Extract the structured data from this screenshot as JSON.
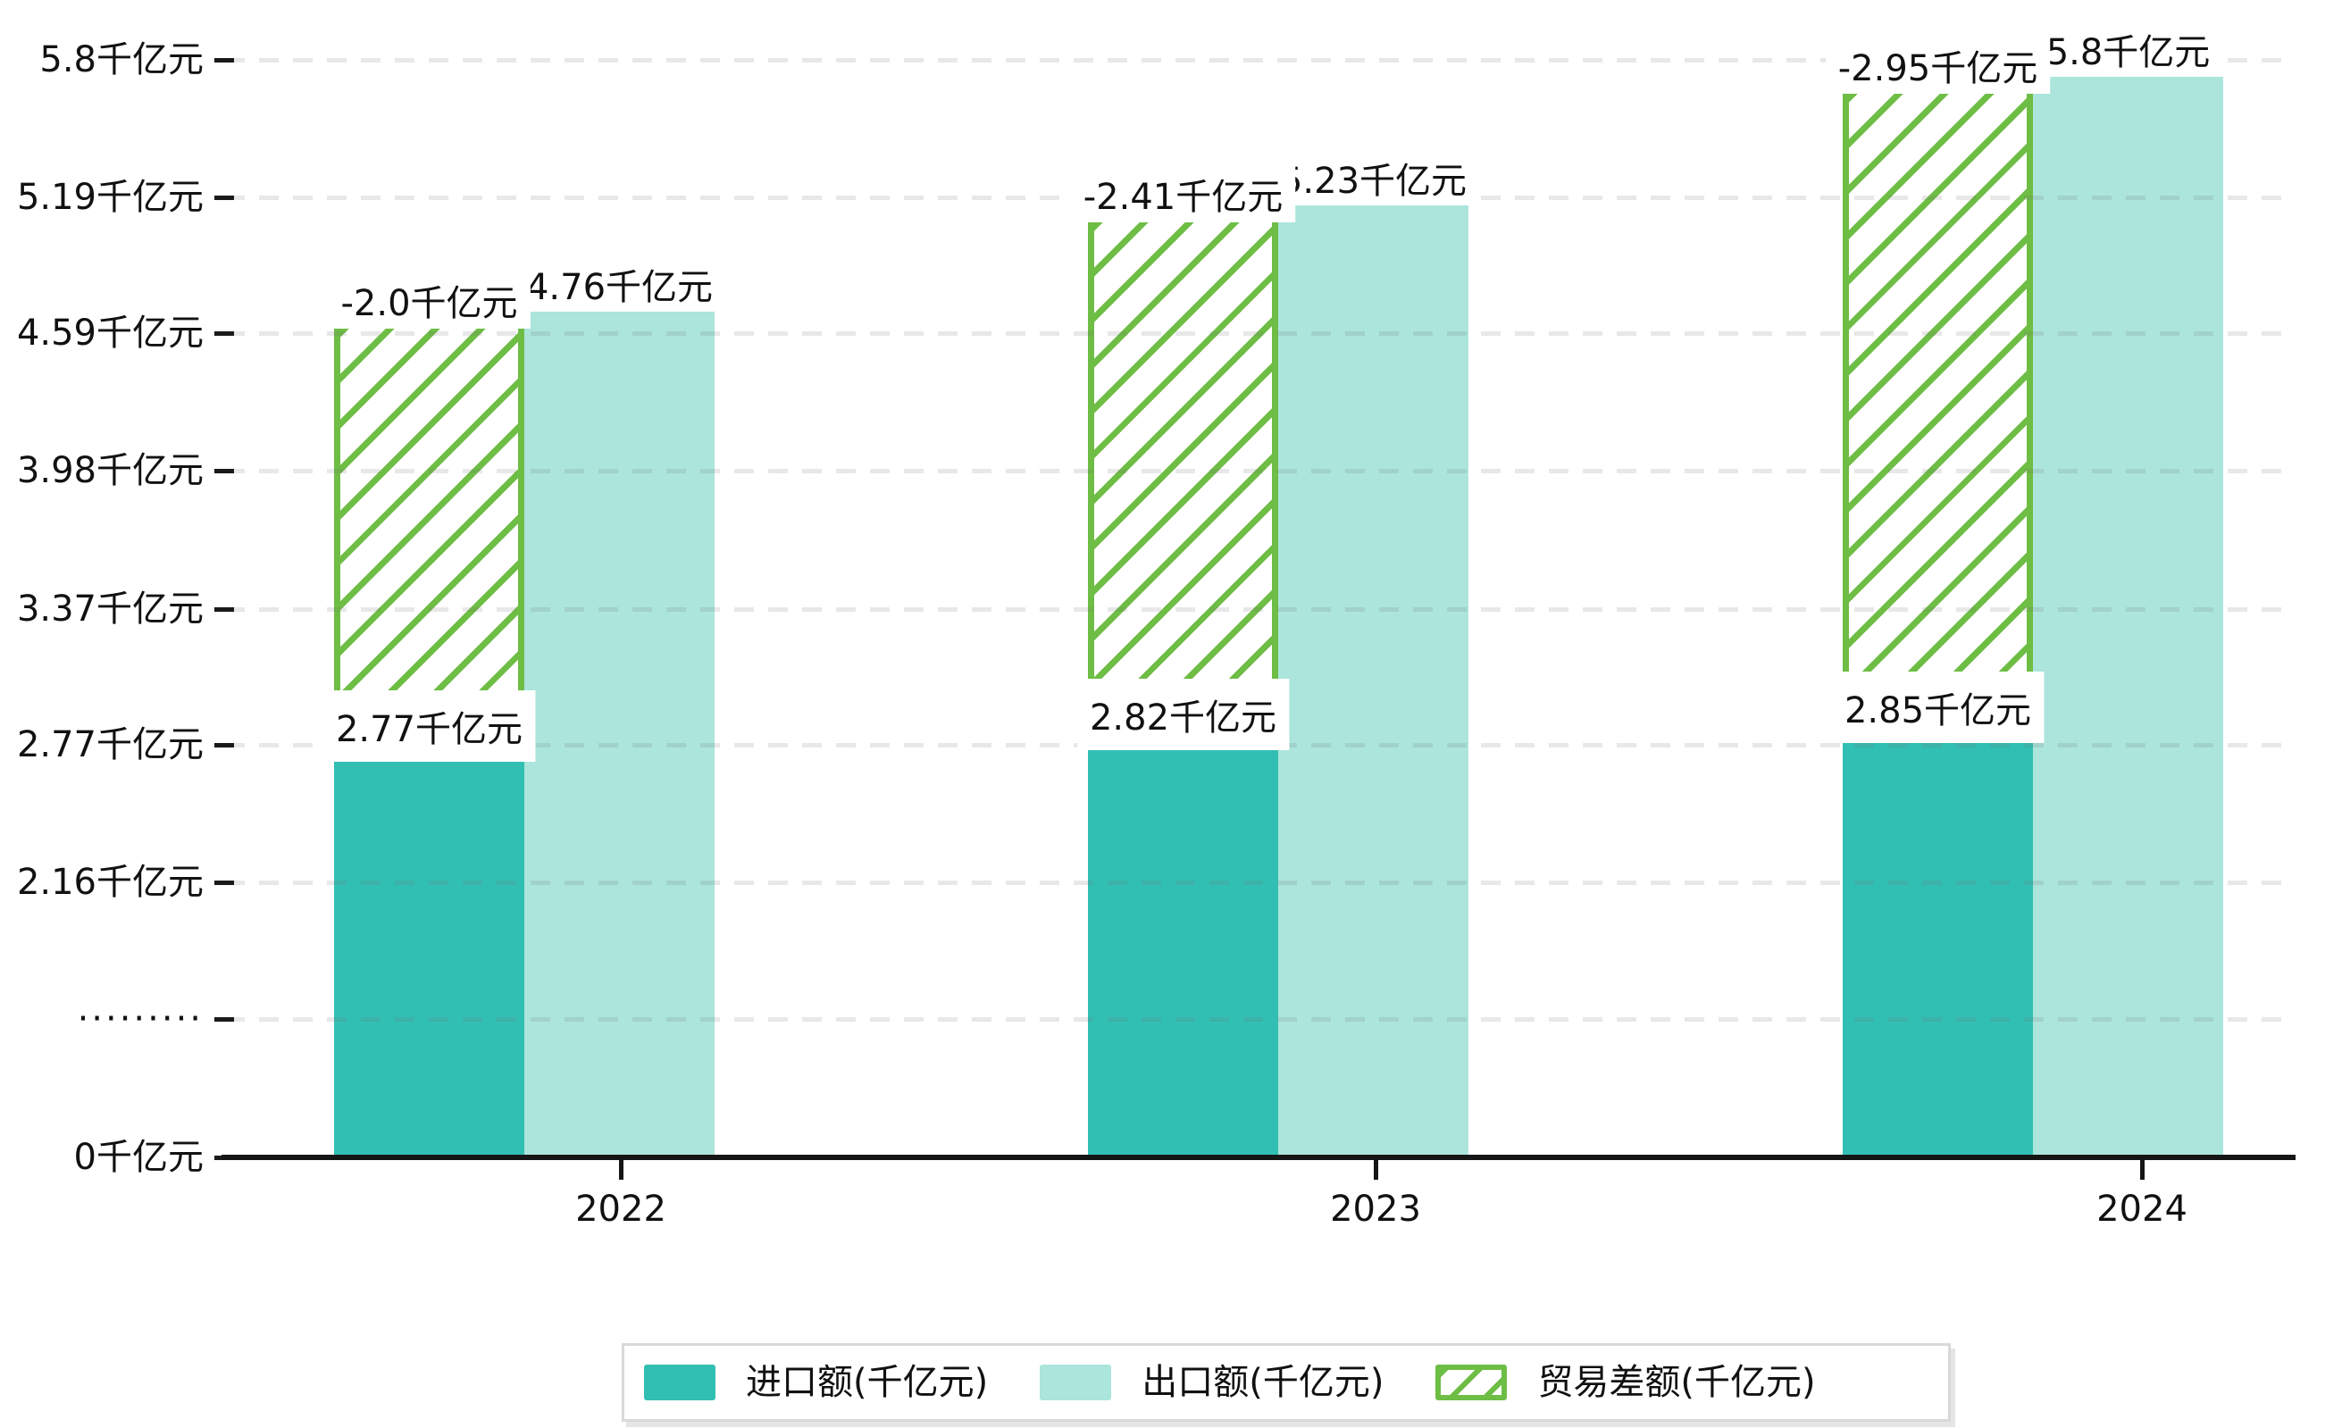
{
  "chart_data": {
    "type": "bar",
    "title": "",
    "unit": "千亿元",
    "categories": [
      "2022",
      "2023",
      "2024"
    ],
    "series": [
      {
        "name": "进口额(千亿元)",
        "key": "import",
        "values": [
          2.77,
          2.82,
          2.85
        ],
        "data_labels": [
          "2.77千亿元",
          "2.82千亿元",
          "2.85千亿元"
        ],
        "color": "#32bfb3",
        "style": "solid"
      },
      {
        "name": "出口额(千亿元)",
        "key": "export",
        "values": [
          4.76,
          5.23,
          5.8
        ],
        "data_labels": [
          "4.76千亿元",
          "5.23千亿元",
          "5.8千亿元"
        ],
        "color": "#abe5dc",
        "style": "solid"
      },
      {
        "name": "贸易差额(千亿元)",
        "key": "balance",
        "values": [
          -2.0,
          -2.41,
          -2.95
        ],
        "data_labels": [
          "-2.0千亿元",
          "-2.41千亿元",
          "-2.95千亿元"
        ],
        "color": "#6ebd45",
        "style": "hatched"
      }
    ],
    "y_axis": {
      "unit": "千亿元",
      "range": [
        0,
        5.8
      ],
      "broken_axis": true,
      "grid": true,
      "ticks": [
        {
          "label": "5.8千亿元",
          "value": 5.8
        },
        {
          "label": "5.19千亿元",
          "value": 5.19
        },
        {
          "label": "4.59千亿元",
          "value": 4.59
        },
        {
          "label": "3.98千亿元",
          "value": 3.98
        },
        {
          "label": "3.37千亿元",
          "value": 3.37
        },
        {
          "label": "2.77千亿元",
          "value": 2.77
        },
        {
          "label": "2.16千亿元",
          "value": 2.16
        },
        {
          "label": "·········",
          "value": null
        },
        {
          "label": "0千亿元",
          "value": 0
        }
      ]
    },
    "x_axis": {
      "labels": [
        "2022",
        "2023",
        "2024"
      ]
    },
    "legend": {
      "position": "bottom-center",
      "items": [
        "进口额(千亿元)",
        "出口额(千亿元)",
        "贸易差额(千亿元)"
      ]
    },
    "colors": {
      "import_bar": "#32bfb3",
      "export_bar": "#abe5dc",
      "balance_hatch": "#6ebd45",
      "grid": "#e9e9e9",
      "axis": "#151515",
      "label_background": "#ffffff",
      "text": "#111111"
    }
  }
}
